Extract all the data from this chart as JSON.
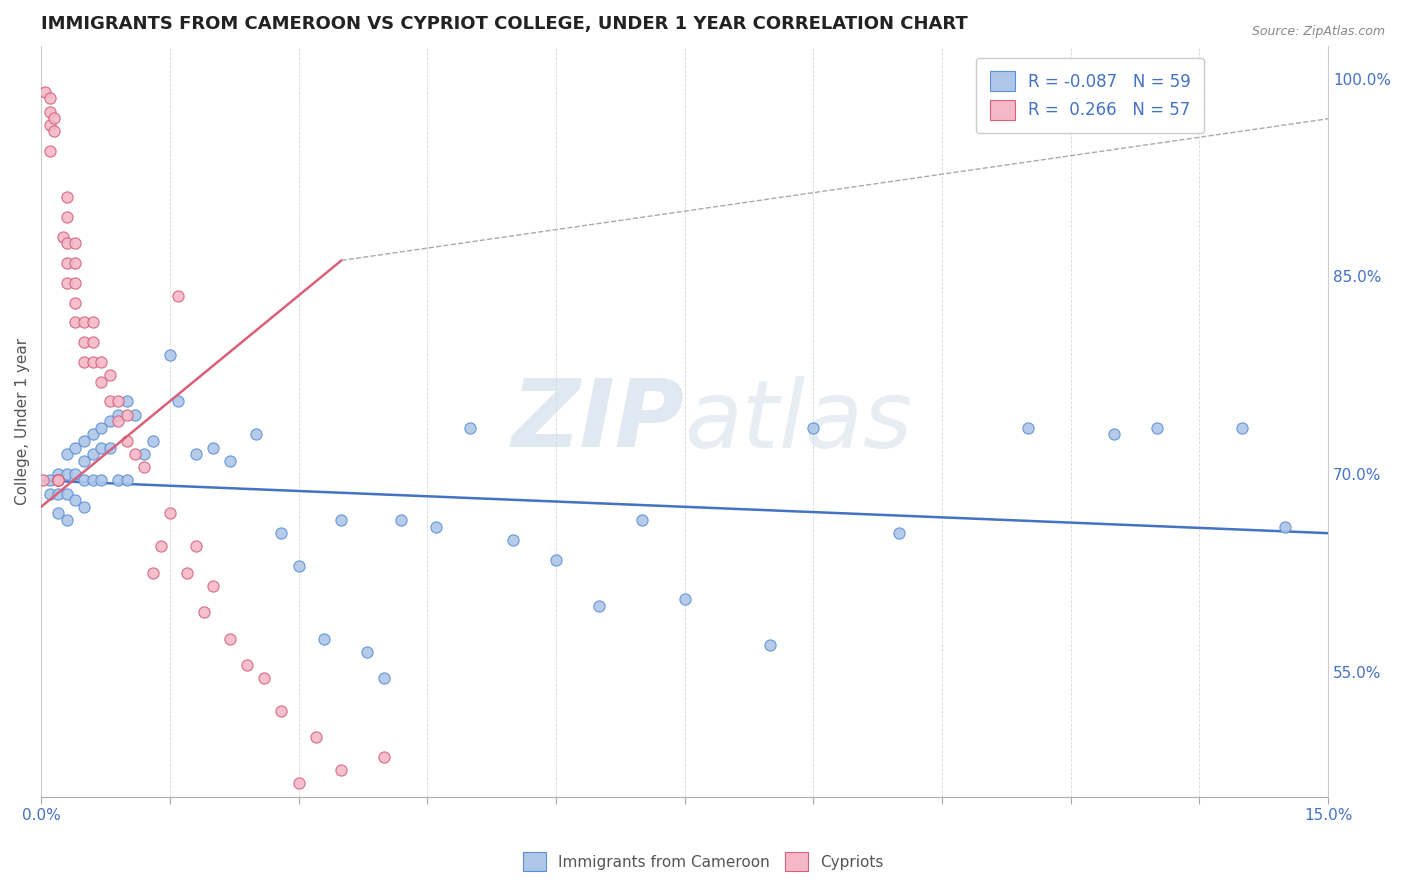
{
  "title": "IMMIGRANTS FROM CAMEROON VS CYPRIOT COLLEGE, UNDER 1 YEAR CORRELATION CHART",
  "source": "Source: ZipAtlas.com",
  "ylabel": "College, Under 1 year",
  "xlim": [
    0.0,
    0.15
  ],
  "ylim": [
    0.455,
    1.025
  ],
  "ytick_labels_right": [
    "55.0%",
    "70.0%",
    "85.0%",
    "100.0%"
  ],
  "ytick_values_right": [
    0.55,
    0.7,
    0.85,
    1.0
  ],
  "legend_r_blue": "-0.087",
  "legend_n_blue": "59",
  "legend_r_pink": "0.266",
  "legend_n_pink": "57",
  "blue_color": "#aec6e8",
  "pink_color": "#f4b8c8",
  "blue_edge_color": "#5b8fd4",
  "pink_edge_color": "#d4607a",
  "blue_line_color": "#4472c4",
  "pink_line_color": "#d9607a",
  "watermark_color": "#ccd9e8",
  "blue_x": [
    0.001,
    0.001,
    0.002,
    0.002,
    0.002,
    0.003,
    0.003,
    0.003,
    0.003,
    0.004,
    0.004,
    0.004,
    0.005,
    0.005,
    0.005,
    0.005,
    0.006,
    0.006,
    0.006,
    0.007,
    0.007,
    0.007,
    0.008,
    0.008,
    0.009,
    0.009,
    0.01,
    0.01,
    0.011,
    0.012,
    0.013,
    0.015,
    0.016,
    0.018,
    0.02,
    0.022,
    0.025,
    0.028,
    0.03,
    0.033,
    0.035,
    0.038,
    0.04,
    0.042,
    0.046,
    0.05,
    0.055,
    0.06,
    0.065,
    0.07,
    0.075,
    0.085,
    0.09,
    0.1,
    0.115,
    0.125,
    0.13,
    0.14,
    0.145
  ],
  "blue_y": [
    0.695,
    0.685,
    0.7,
    0.685,
    0.67,
    0.715,
    0.7,
    0.685,
    0.665,
    0.72,
    0.7,
    0.68,
    0.725,
    0.71,
    0.695,
    0.675,
    0.73,
    0.715,
    0.695,
    0.735,
    0.72,
    0.695,
    0.74,
    0.72,
    0.745,
    0.695,
    0.755,
    0.695,
    0.745,
    0.715,
    0.725,
    0.79,
    0.755,
    0.715,
    0.72,
    0.71,
    0.73,
    0.655,
    0.63,
    0.575,
    0.665,
    0.565,
    0.545,
    0.665,
    0.66,
    0.735,
    0.65,
    0.635,
    0.6,
    0.665,
    0.605,
    0.57,
    0.735,
    0.655,
    0.735,
    0.73,
    0.735,
    0.735,
    0.66
  ],
  "pink_x": [
    0.0002,
    0.0005,
    0.001,
    0.001,
    0.001,
    0.001,
    0.0015,
    0.0015,
    0.002,
    0.002,
    0.002,
    0.002,
    0.002,
    0.002,
    0.0025,
    0.003,
    0.003,
    0.003,
    0.003,
    0.003,
    0.004,
    0.004,
    0.004,
    0.004,
    0.004,
    0.005,
    0.005,
    0.005,
    0.006,
    0.006,
    0.006,
    0.007,
    0.007,
    0.008,
    0.008,
    0.009,
    0.009,
    0.01,
    0.01,
    0.011,
    0.012,
    0.013,
    0.014,
    0.015,
    0.016,
    0.017,
    0.018,
    0.019,
    0.02,
    0.022,
    0.024,
    0.026,
    0.028,
    0.03,
    0.032,
    0.035,
    0.04
  ],
  "pink_y": [
    0.695,
    0.99,
    0.945,
    0.985,
    0.975,
    0.965,
    0.97,
    0.96,
    0.695,
    0.695,
    0.695,
    0.695,
    0.695,
    0.695,
    0.88,
    0.91,
    0.895,
    0.875,
    0.86,
    0.845,
    0.875,
    0.86,
    0.845,
    0.83,
    0.815,
    0.815,
    0.8,
    0.785,
    0.815,
    0.8,
    0.785,
    0.785,
    0.77,
    0.775,
    0.755,
    0.755,
    0.74,
    0.745,
    0.725,
    0.715,
    0.705,
    0.625,
    0.645,
    0.67,
    0.835,
    0.625,
    0.645,
    0.595,
    0.615,
    0.575,
    0.555,
    0.545,
    0.52,
    0.465,
    0.5,
    0.475,
    0.485
  ]
}
